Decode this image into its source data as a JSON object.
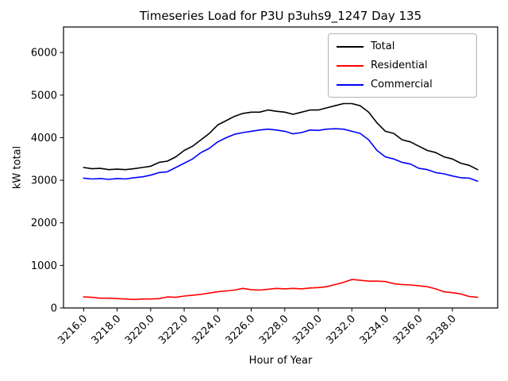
{
  "figure": {
    "background": "#ffffff"
  },
  "chart_data": {
    "type": "line",
    "title": "Timeseries Load for P3U p3uhs9_1247  Day 135",
    "xlabel": "Hour of Year",
    "ylabel": "kW total",
    "grid": false,
    "legend_position": "upper right",
    "xlim": [
      3214.8,
      3240.7
    ],
    "ylim": [
      0,
      6600
    ],
    "xticks": [
      3216,
      3218,
      3220,
      3222,
      3224,
      3226,
      3228,
      3230,
      3232,
      3234,
      3236,
      3238
    ],
    "xtick_decimals": 1,
    "yticks": [
      0,
      1000,
      2000,
      3000,
      4000,
      5000,
      6000
    ],
    "x": [
      3216.0,
      3216.5,
      3217.0,
      3217.5,
      3218.0,
      3218.5,
      3219.0,
      3219.5,
      3220.0,
      3220.5,
      3221.0,
      3221.5,
      3222.0,
      3222.5,
      3223.0,
      3223.5,
      3224.0,
      3224.5,
      3225.0,
      3225.5,
      3226.0,
      3226.5,
      3227.0,
      3227.5,
      3228.0,
      3228.5,
      3229.0,
      3229.5,
      3230.0,
      3230.5,
      3231.0,
      3231.5,
      3232.0,
      3232.5,
      3233.0,
      3233.5,
      3234.0,
      3234.5,
      3235.0,
      3235.5,
      3236.0,
      3236.5,
      3237.0,
      3237.5,
      3238.0,
      3238.5,
      3239.0,
      3239.5
    ],
    "series": [
      {
        "name": "Total",
        "color": "#000000",
        "values": [
          3300,
          3270,
          3280,
          3250,
          3260,
          3250,
          3270,
          3300,
          3330,
          3420,
          3450,
          3550,
          3700,
          3800,
          3950,
          4100,
          4300,
          4400,
          4500,
          4570,
          4600,
          4600,
          4650,
          4620,
          4600,
          4550,
          4600,
          4650,
          4650,
          4700,
          4750,
          4800,
          4800,
          4750,
          4600,
          4350,
          4150,
          4100,
          3950,
          3900,
          3800,
          3700,
          3650,
          3550,
          3500,
          3400,
          3350,
          3250
        ]
      },
      {
        "name": "Residential",
        "color": "#ff0000",
        "values": [
          260,
          250,
          230,
          230,
          220,
          210,
          200,
          210,
          210,
          220,
          260,
          250,
          280,
          300,
          320,
          350,
          380,
          400,
          420,
          460,
          430,
          420,
          440,
          460,
          450,
          460,
          450,
          470,
          480,
          500,
          550,
          600,
          670,
          650,
          630,
          630,
          620,
          570,
          550,
          540,
          520,
          500,
          450,
          380,
          360,
          330,
          270,
          250
        ]
      },
      {
        "name": "Commercial",
        "color": "#0000ff",
        "values": [
          3050,
          3030,
          3040,
          3020,
          3040,
          3030,
          3060,
          3080,
          3120,
          3180,
          3200,
          3300,
          3400,
          3500,
          3650,
          3750,
          3900,
          4000,
          4080,
          4120,
          4150,
          4180,
          4200,
          4180,
          4150,
          4090,
          4120,
          4180,
          4170,
          4200,
          4210,
          4200,
          4150,
          4100,
          3950,
          3700,
          3550,
          3500,
          3420,
          3380,
          3280,
          3250,
          3180,
          3150,
          3100,
          3060,
          3050,
          2980
        ]
      }
    ]
  }
}
